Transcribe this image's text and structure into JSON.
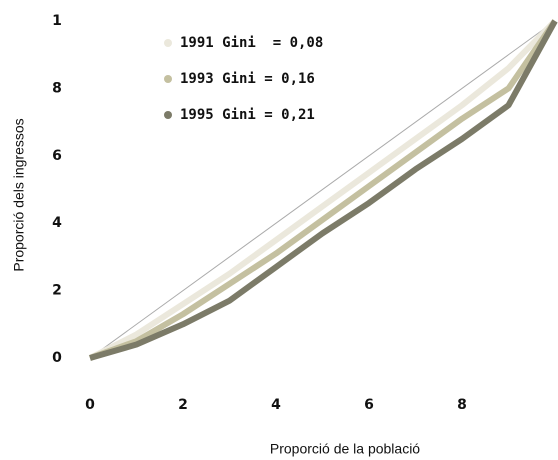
{
  "chart_data": {
    "type": "line",
    "xlabel": "Proporció de la població",
    "ylabel": "Proporció dels ingressos",
    "x": [
      0,
      0.1,
      0.2,
      0.3,
      0.4,
      0.5,
      0.6,
      0.7,
      0.8,
      0.9,
      1
    ],
    "series": [
      {
        "name": "1991 Gini  = 0,08",
        "color": "#ebe8dc",
        "values": [
          0,
          0.07,
          0.16,
          0.25,
          0.35,
          0.45,
          0.55,
          0.65,
          0.75,
          0.86,
          1
        ]
      },
      {
        "name": "1993 Gini = 0,16",
        "color": "#c4c0a0",
        "values": [
          0,
          0.05,
          0.13,
          0.22,
          0.31,
          0.41,
          0.51,
          0.61,
          0.71,
          0.8,
          1
        ]
      },
      {
        "name": "1995 Gini = 0,21",
        "color": "#7c7b68",
        "values": [
          0,
          0.04,
          0.1,
          0.17,
          0.27,
          0.37,
          0.46,
          0.56,
          0.65,
          0.75,
          1
        ]
      }
    ],
    "xlim": [
      0,
      1
    ],
    "ylim": [
      0,
      1
    ],
    "xticks": [
      0,
      {
        "value": 0.2,
        "label": "2"
      },
      {
        "value": 0.4,
        "label": "4"
      },
      {
        "value": 0.6,
        "label": "6"
      },
      {
        "value": 0.8,
        "label": "8"
      }
    ],
    "yticks": [
      0,
      {
        "value": 0.2,
        "label": "2"
      },
      {
        "value": 0.4,
        "label": "4"
      },
      {
        "value": 0.6,
        "label": "6"
      },
      {
        "value": 0.8,
        "label": "8"
      },
      1
    ]
  }
}
